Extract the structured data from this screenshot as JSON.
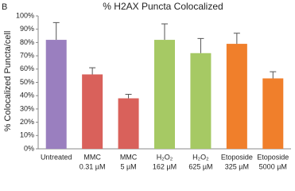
{
  "chart_data": {
    "type": "bar",
    "panel_label": "B",
    "title": "% H2AX Puncta Colocalized",
    "y_label": "% Colocalized Puncta/cell",
    "categories": [
      [
        "Untreated"
      ],
      [
        "MMC",
        "0.31 µM"
      ],
      [
        "MMC",
        "5 µM"
      ],
      [
        "H₂O₂",
        "162 µM"
      ],
      [
        "H₂O₂",
        "625 µM"
      ],
      [
        "Etoposide",
        "325 µM"
      ],
      [
        "Etoposide",
        "5000 µM"
      ]
    ],
    "values": [
      82,
      56,
      38,
      82,
      72,
      79,
      53
    ],
    "errors": [
      13,
      5,
      3,
      12,
      11,
      8,
      5
    ],
    "colors": [
      "#9a7fbf",
      "#d9615b",
      "#d9615b",
      "#a6c964",
      "#a6c964",
      "#f07f2b",
      "#f07f2b"
    ],
    "error_color": "#555555",
    "ylim": [
      0,
      100
    ],
    "yticks": [
      {
        "value": 0,
        "label": "0%"
      },
      {
        "value": 10,
        "label": "10%"
      },
      {
        "value": 20,
        "label": "20%"
      },
      {
        "value": 30,
        "label": "30%"
      },
      {
        "value": 40,
        "label": "40%"
      },
      {
        "value": 50,
        "label": "50%"
      },
      {
        "value": 60,
        "label": "60%"
      },
      {
        "value": 70,
        "label": "70%"
      },
      {
        "value": 80,
        "label": "80%"
      },
      {
        "value": 90,
        "label": "90%"
      },
      {
        "value": 100,
        "label": "100%"
      }
    ],
    "grid": false
  }
}
